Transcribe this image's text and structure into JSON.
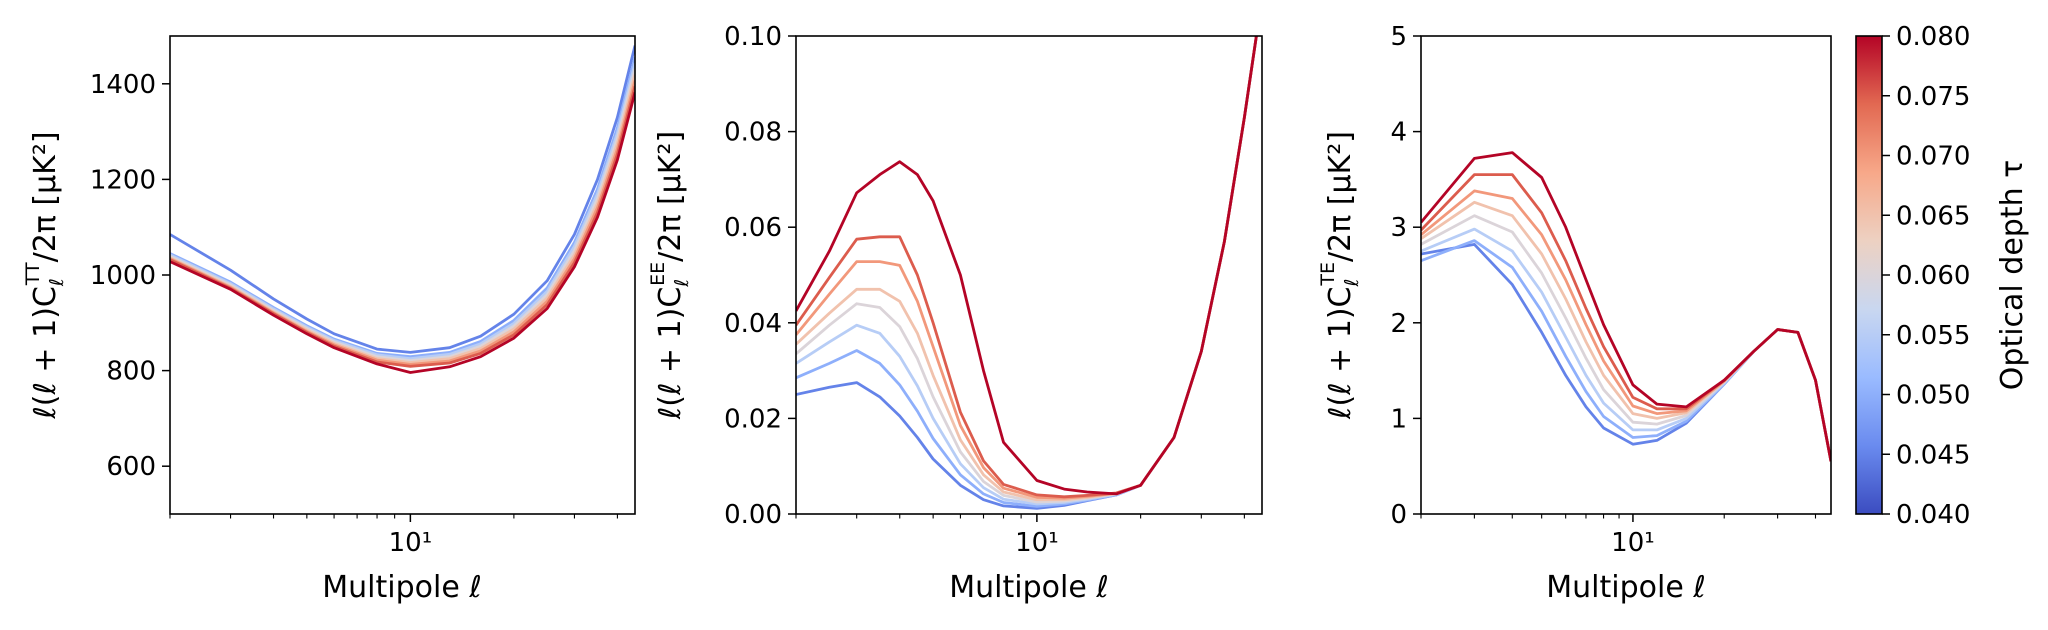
{
  "chart_data": [
    {
      "type": "line",
      "panel": "TT",
      "xscale": "log",
      "xlim": [
        2,
        45
      ],
      "ylim": [
        500,
        1500
      ],
      "xticks": [
        {
          "value": 10,
          "label": "10¹"
        }
      ],
      "yticks": [
        600,
        800,
        1000,
        1200,
        1400
      ],
      "xlabel": "Multipole ℓ",
      "ylabel": "ℓ(ℓ + 1)C_ℓ^TT/2π [μK²]",
      "ylabel_parts": {
        "pre": "ℓ(ℓ + 1)C",
        "sub": "ℓ",
        "sup": "TT",
        "post": "/2π [μK²]"
      },
      "x": [
        2,
        3,
        4,
        5,
        6,
        8,
        10,
        13,
        16,
        20,
        25,
        30,
        35,
        40,
        45
      ],
      "series": [
        {
          "tau": 0.045,
          "values": [
            1085,
            1010,
            950,
            908,
            877,
            845,
            838,
            848,
            872,
            918,
            988,
            1085,
            1200,
            1330,
            1480
          ]
        },
        {
          "tau": 0.05,
          "values": [
            1045,
            985,
            932,
            894,
            866,
            836,
            829,
            838,
            861,
            905,
            973,
            1068,
            1180,
            1308,
            1455
          ]
        },
        {
          "tau": 0.055,
          "values": [
            1042,
            982,
            929,
            891,
            863,
            833,
            825,
            834,
            856,
            899,
            966,
            1060,
            1170,
            1297,
            1443
          ]
        },
        {
          "tau": 0.06,
          "values": [
            1039,
            979,
            926,
            888,
            860,
            829,
            821,
            829,
            851,
            893,
            959,
            1051,
            1160,
            1286,
            1431
          ]
        },
        {
          "tau": 0.065,
          "values": [
            1036,
            976,
            923,
            885,
            857,
            825,
            817,
            825,
            846,
            887,
            952,
            1042,
            1150,
            1275,
            1419
          ]
        },
        {
          "tau": 0.07,
          "values": [
            1034,
            974,
            921,
            882,
            854,
            822,
            813,
            820,
            841,
            881,
            945,
            1034,
            1141,
            1264,
            1407
          ]
        },
        {
          "tau": 0.075,
          "values": [
            1032,
            972,
            919,
            880,
            851,
            818,
            809,
            816,
            836,
            875,
            938,
            1026,
            1131,
            1253,
            1395
          ]
        },
        {
          "tau": 0.08,
          "values": [
            1028,
            970,
            916,
            877,
            848,
            814,
            796,
            808,
            829,
            868,
            930,
            1017,
            1121,
            1241,
            1382
          ]
        }
      ]
    },
    {
      "type": "line",
      "panel": "EE",
      "xscale": "log",
      "xlim": [
        2,
        45
      ],
      "ylim": [
        0,
        0.1
      ],
      "xticks": [
        {
          "value": 10,
          "label": "10¹"
        }
      ],
      "yticks": [
        "0.00",
        "0.02",
        "0.04",
        "0.06",
        "0.08",
        "0.10"
      ],
      "xlabel": "Multipole ℓ",
      "ylabel": "ℓ(ℓ + 1)C_ℓ^EE/2π [μK²]",
      "ylabel_parts": {
        "pre": "ℓ(ℓ + 1)C",
        "sub": "ℓ",
        "sup": "EE",
        "post": "/2π [μK²]"
      },
      "x": [
        2,
        2.5,
        3,
        3.5,
        4,
        4.5,
        5,
        6,
        7,
        8,
        10,
        12,
        14,
        17,
        20,
        25,
        30,
        35,
        40,
        45
      ],
      "series": [
        {
          "tau": 0.045,
          "values": [
            0.025,
            0.0265,
            0.0275,
            0.0245,
            0.0205,
            0.016,
            0.0115,
            0.006,
            0.003,
            0.0017,
            0.0012,
            0.0018,
            0.0028,
            0.004,
            0.006,
            0.016,
            0.034,
            0.057,
            0.083,
            0.108
          ]
        },
        {
          "tau": 0.05,
          "values": [
            0.0285,
            0.0315,
            0.0342,
            0.0315,
            0.027,
            0.0215,
            0.0158,
            0.0082,
            0.0042,
            0.0024,
            0.0016,
            0.0021,
            0.0029,
            0.004,
            0.006,
            0.016,
            0.034,
            0.057,
            0.083,
            0.108
          ]
        },
        {
          "tau": 0.055,
          "values": [
            0.0315,
            0.036,
            0.0395,
            0.0378,
            0.033,
            0.0268,
            0.02,
            0.0105,
            0.0055,
            0.0031,
            0.0021,
            0.0024,
            0.0031,
            0.0041,
            0.006,
            0.016,
            0.034,
            0.057,
            0.083,
            0.108
          ]
        },
        {
          "tau": 0.06,
          "values": [
            0.0335,
            0.0395,
            0.044,
            0.0432,
            0.0392,
            0.0325,
            0.0245,
            0.013,
            0.0068,
            0.0039,
            0.0025,
            0.0027,
            0.0033,
            0.0042,
            0.006,
            0.016,
            0.034,
            0.057,
            0.083,
            0.108
          ]
        },
        {
          "tau": 0.065,
          "values": [
            0.0355,
            0.042,
            0.047,
            0.047,
            0.0445,
            0.0378,
            0.029,
            0.0155,
            0.0082,
            0.0046,
            0.003,
            0.003,
            0.0035,
            0.0043,
            0.006,
            0.016,
            0.034,
            0.057,
            0.083,
            0.108
          ]
        },
        {
          "tau": 0.07,
          "values": [
            0.0375,
            0.046,
            0.0528,
            0.0528,
            0.052,
            0.0445,
            0.035,
            0.0185,
            0.0097,
            0.0054,
            0.0035,
            0.0033,
            0.0037,
            0.0043,
            0.006,
            0.016,
            0.034,
            0.057,
            0.083,
            0.108
          ]
        },
        {
          "tau": 0.075,
          "values": [
            0.0395,
            0.0495,
            0.0575,
            0.058,
            0.058,
            0.05,
            0.04,
            0.0213,
            0.0111,
            0.0062,
            0.004,
            0.0036,
            0.0039,
            0.0044,
            0.006,
            0.016,
            0.034,
            0.057,
            0.083,
            0.108
          ]
        },
        {
          "tau": 0.08,
          "values": [
            0.0425,
            0.055,
            0.0672,
            0.071,
            0.0737,
            0.071,
            0.0655,
            0.05,
            0.03,
            0.015,
            0.007,
            0.0052,
            0.0046,
            0.0042,
            0.006,
            0.016,
            0.034,
            0.057,
            0.083,
            0.108
          ]
        }
      ]
    },
    {
      "type": "line",
      "panel": "TE",
      "xscale": "log",
      "xlim": [
        2,
        45
      ],
      "ylim": [
        0,
        5
      ],
      "xticks": [
        {
          "value": 10,
          "label": "10¹"
        }
      ],
      "yticks": [
        0,
        1,
        2,
        3,
        4,
        5
      ],
      "xlabel": "Multipole ℓ",
      "ylabel": "ℓ(ℓ + 1)C_ℓ^TE/2π [μK²]",
      "ylabel_parts": {
        "pre": "ℓ(ℓ + 1)C",
        "sub": "ℓ",
        "sup": "TE",
        "post": "/2π [μK²]"
      },
      "x": [
        2,
        3,
        4,
        5,
        6,
        7,
        8,
        10,
        12,
        15,
        20,
        25,
        30,
        35,
        40,
        45
      ],
      "series": [
        {
          "tau": 0.045,
          "values": [
            2.72,
            2.82,
            2.4,
            1.9,
            1.45,
            1.12,
            0.9,
            0.73,
            0.77,
            0.95,
            1.36,
            1.7,
            1.93,
            1.9,
            1.4,
            0.55
          ]
        },
        {
          "tau": 0.05,
          "values": [
            2.65,
            2.86,
            2.58,
            2.12,
            1.65,
            1.28,
            1.02,
            0.8,
            0.82,
            0.97,
            1.36,
            1.7,
            1.93,
            1.9,
            1.4,
            0.55
          ]
        },
        {
          "tau": 0.055,
          "values": [
            2.75,
            2.98,
            2.75,
            2.32,
            1.85,
            1.45,
            1.16,
            0.88,
            0.88,
            1.0,
            1.37,
            1.7,
            1.93,
            1.9,
            1.4,
            0.55
          ]
        },
        {
          "tau": 0.06,
          "values": [
            2.82,
            3.12,
            2.95,
            2.52,
            2.05,
            1.63,
            1.3,
            0.96,
            0.94,
            1.03,
            1.38,
            1.7,
            1.93,
            1.9,
            1.4,
            0.55
          ]
        },
        {
          "tau": 0.065,
          "values": [
            2.88,
            3.26,
            3.12,
            2.72,
            2.25,
            1.8,
            1.45,
            1.05,
            1.0,
            1.06,
            1.39,
            1.7,
            1.93,
            1.9,
            1.4,
            0.55
          ]
        },
        {
          "tau": 0.07,
          "values": [
            2.92,
            3.38,
            3.3,
            2.92,
            2.45,
            1.98,
            1.6,
            1.13,
            1.05,
            1.08,
            1.39,
            1.7,
            1.93,
            1.9,
            1.4,
            0.55
          ]
        },
        {
          "tau": 0.075,
          "values": [
            2.97,
            3.55,
            3.55,
            3.15,
            2.65,
            2.15,
            1.75,
            1.22,
            1.1,
            1.1,
            1.4,
            1.7,
            1.93,
            1.9,
            1.4,
            0.55
          ]
        },
        {
          "tau": 0.08,
          "values": [
            3.05,
            3.72,
            3.78,
            3.52,
            3.0,
            2.45,
            1.98,
            1.35,
            1.15,
            1.12,
            1.4,
            1.7,
            1.93,
            1.9,
            1.4,
            0.55
          ]
        }
      ]
    }
  ],
  "colorbar": {
    "label": "Optical depth τ",
    "min": 0.04,
    "max": 0.08,
    "ticks": [
      "0.040",
      "0.045",
      "0.050",
      "0.055",
      "0.060",
      "0.065",
      "0.070",
      "0.075",
      "0.080"
    ],
    "colormap": "coolwarm",
    "stops": [
      "#3b4cc0",
      "#6a8bef",
      "#9abbff",
      "#c9d7f0",
      "#edd1c2",
      "#f7a889",
      "#e26952",
      "#b40426"
    ]
  }
}
